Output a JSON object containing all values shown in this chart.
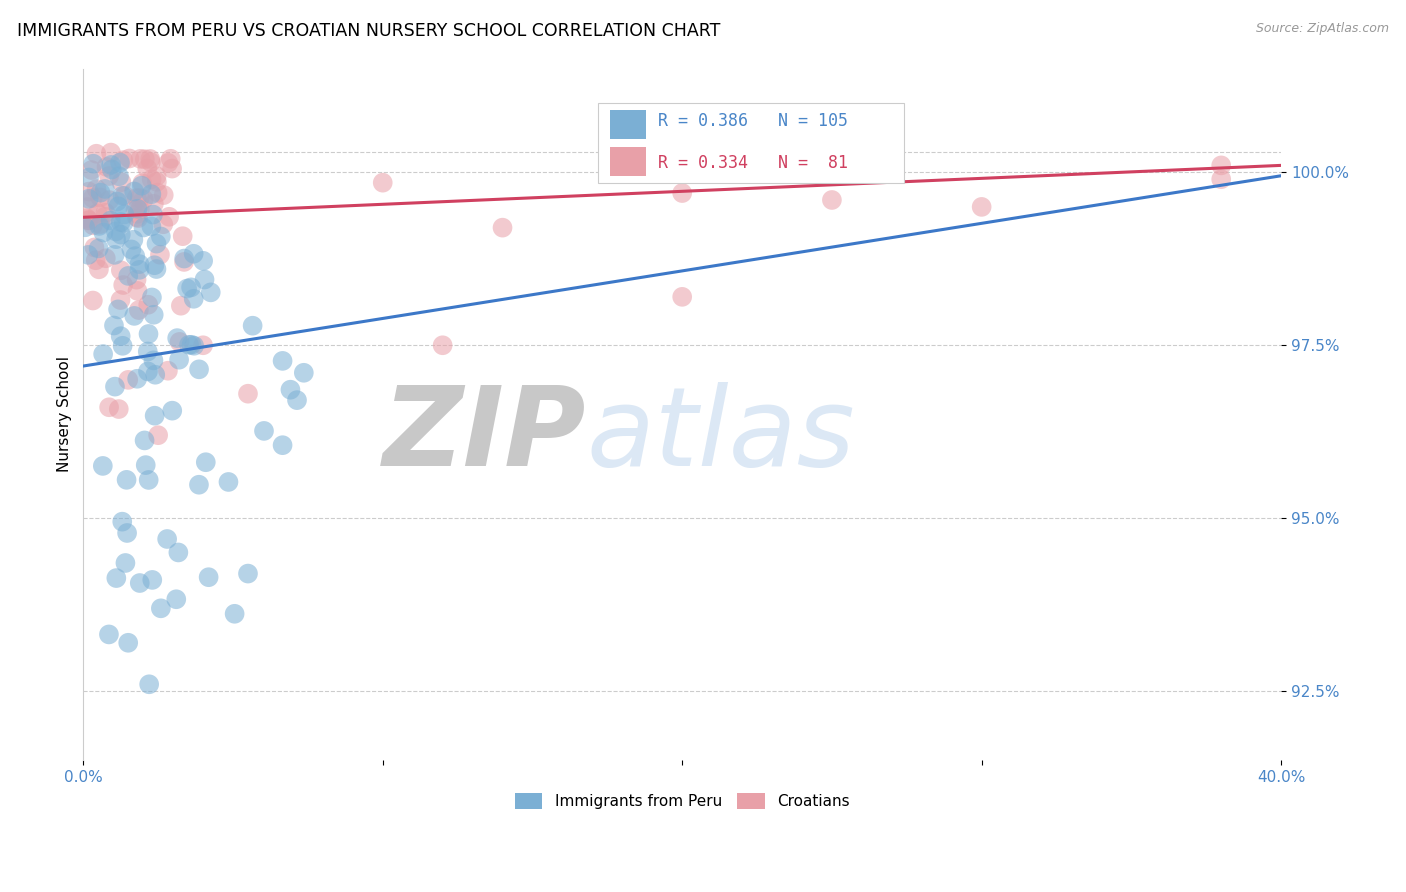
{
  "title": "IMMIGRANTS FROM PERU VS CROATIAN NURSERY SCHOOL CORRELATION CHART",
  "source": "Source: ZipAtlas.com",
  "ylabel": "Nursery School",
  "yticks": [
    92.5,
    95.0,
    97.5,
    100.0
  ],
  "ytick_labels": [
    "92.5%",
    "95.0%",
    "97.5%",
    "100.0%"
  ],
  "legend_labels": [
    "Immigrants from Peru",
    "Croatians"
  ],
  "blue_R": 0.386,
  "blue_N": 105,
  "pink_R": 0.334,
  "pink_N": 81,
  "blue_color": "#7bafd4",
  "pink_color": "#e8a0a8",
  "blue_line_color": "#3c78c8",
  "pink_line_color": "#d04060",
  "watermark_zip": "ZIP",
  "watermark_atlas": "atlas",
  "watermark_color": "#dce8f5",
  "title_fontsize": 12.5,
  "axis_color": "#4a86c8",
  "background_color": "#ffffff",
  "xlim": [
    0.0,
    0.4
  ],
  "ylim": [
    91.5,
    101.5
  ],
  "blue_line_x0": 0.0,
  "blue_line_y0": 97.2,
  "blue_line_x1": 0.4,
  "blue_line_y1": 99.95,
  "pink_line_x0": 0.0,
  "pink_line_y0": 99.35,
  "pink_line_x1": 0.4,
  "pink_line_y1": 100.1
}
